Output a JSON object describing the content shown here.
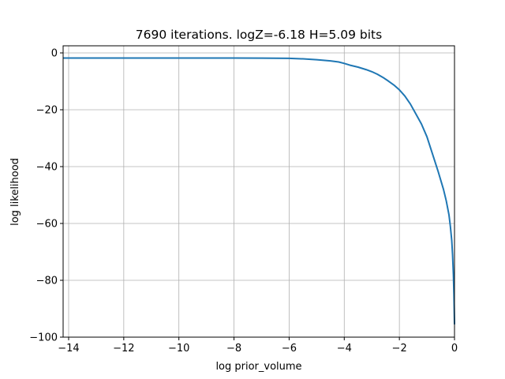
{
  "chart_data": {
    "type": "line",
    "title": "7690 iterations. logZ=-6.18 H=5.09 bits",
    "xlabel": "log prior_volume",
    "ylabel": "log likelihood",
    "xlim": [
      -14.2,
      0.0
    ],
    "ylim": [
      -100,
      2.5
    ],
    "xticks": [
      -14,
      -12,
      -10,
      -8,
      -6,
      -4,
      -2,
      0
    ],
    "xtick_labels": [
      "−14",
      "−12",
      "−10",
      "−8",
      "−6",
      "−4",
      "−2",
      "0"
    ],
    "yticks": [
      0,
      -20,
      -40,
      -60,
      -80,
      -100
    ],
    "ytick_labels": [
      "0",
      "−20",
      "−40",
      "−60",
      "−80",
      "−100"
    ],
    "grid": true,
    "color": "#1f77b4",
    "series": [
      {
        "x": [
          -14.2,
          -12,
          -10,
          -8,
          -7,
          -6,
          -5.5,
          -5,
          -4.5,
          -4.2,
          -4.0,
          -3.8,
          -3.5,
          -3.2,
          -3.0,
          -2.8,
          -2.6,
          -2.4,
          -2.2,
          -2.0,
          -1.8,
          -1.6,
          -1.4,
          -1.2,
          -1.0,
          -0.8,
          -0.6,
          -0.4,
          -0.3,
          -0.2,
          -0.15,
          -0.1,
          -0.07,
          -0.04,
          -0.02,
          0.0
        ],
        "y": [
          -1.8,
          -1.8,
          -1.8,
          -1.8,
          -1.85,
          -1.9,
          -2.1,
          -2.4,
          -2.8,
          -3.2,
          -3.7,
          -4.3,
          -5.0,
          -5.9,
          -6.6,
          -7.5,
          -8.6,
          -9.9,
          -11.3,
          -13.0,
          -15.2,
          -18.0,
          -21.5,
          -25.0,
          -29.5,
          -35.5,
          -41.5,
          -48.0,
          -52.0,
          -57.0,
          -61.0,
          -66.0,
          -71.0,
          -78.0,
          -85.0,
          -95.5
        ]
      }
    ]
  }
}
